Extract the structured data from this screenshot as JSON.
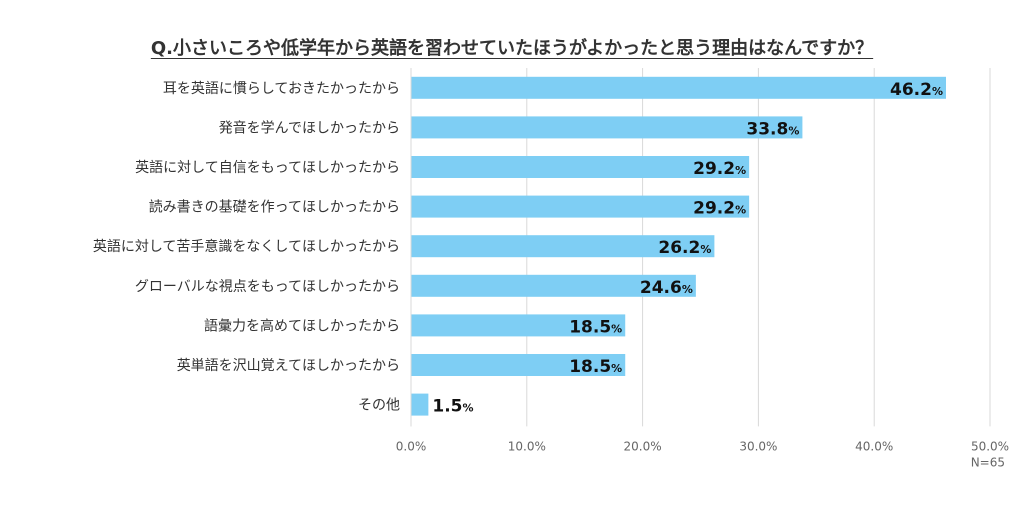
{
  "chart_data": {
    "type": "bar",
    "orientation": "horizontal",
    "title": "Q.小さいころや低学年から英語を習わせていたほうがよかったと思う理由はなんですか？",
    "categories": [
      "耳を英語に慣らしておきたかったから",
      "発音を学んでほしかったから",
      "英語に対して自信をもってほしかったから",
      "読み書きの基礎を作ってほしかったから",
      "英語に対して苦手意識をなくしてほしかったから",
      "グローバルな視点をもってほしかったから",
      "語彙力を高めてほしかったから",
      "英単語を沢山覚えてほしかったから",
      "その他"
    ],
    "values": [
      46.2,
      33.8,
      29.2,
      29.2,
      26.2,
      24.6,
      18.5,
      18.5,
      1.5
    ],
    "value_labels": [
      "46.2",
      "33.8",
      "29.2",
      "29.2",
      "26.2",
      "24.6",
      "18.5",
      "18.5",
      "1.5"
    ],
    "value_unit": "%",
    "xlim": [
      0,
      50
    ],
    "x_ticks": [
      "0.0%",
      "10.0%",
      "20.0%",
      "30.0%",
      "40.0%",
      "50.0%"
    ],
    "x_tick_values": [
      0,
      10,
      20,
      30,
      40,
      50
    ],
    "note": "N=65",
    "grid": true,
    "colors": {
      "bar": "#7ecef4",
      "grid": "#d9d9d9",
      "text": "#333333"
    }
  }
}
